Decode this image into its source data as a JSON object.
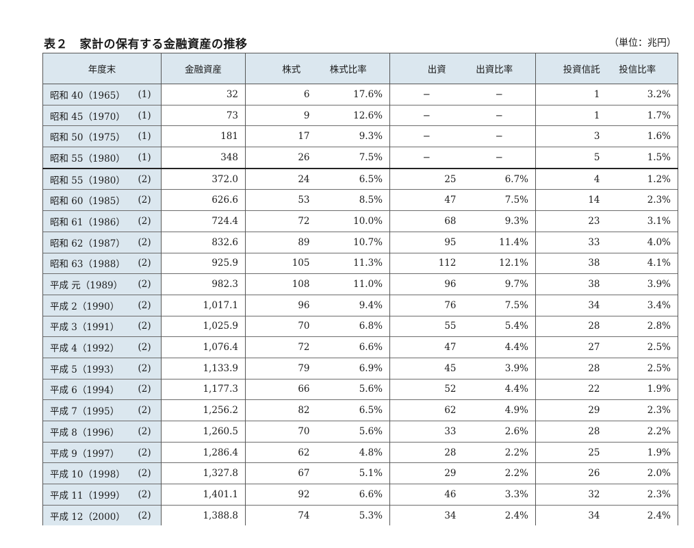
{
  "title": "表２　家計の保有する金融資産の推移",
  "unit": "（単位：兆円）",
  "headers": {
    "year_end": "年度末",
    "financial_assets": "金融資産",
    "stocks": "株式",
    "stock_ratio": "株式比率",
    "investment": "出資",
    "investment_ratio": "出資比率",
    "trusts": "投資信託",
    "trust_ratio": "投信比率"
  },
  "rows": [
    {
      "era": "昭和 40（1965）",
      "note": "(1)",
      "assets": "32",
      "stocks": "6",
      "stock_ratio": "17.6%",
      "invest": "−",
      "invest_ratio": "−",
      "trust": "1",
      "trust_ratio": "3.2%"
    },
    {
      "era": "昭和 45（1970）",
      "note": "(1)",
      "assets": "73",
      "stocks": "9",
      "stock_ratio": "12.6%",
      "invest": "−",
      "invest_ratio": "−",
      "trust": "1",
      "trust_ratio": "1.7%"
    },
    {
      "era": "昭和 50（1975）",
      "note": "(1)",
      "assets": "181",
      "stocks": "17",
      "stock_ratio": "9.3%",
      "invest": "−",
      "invest_ratio": "−",
      "trust": "3",
      "trust_ratio": "1.6%"
    },
    {
      "era": "昭和 55（1980）",
      "note": "(1)",
      "assets": "348",
      "stocks": "26",
      "stock_ratio": "7.5%",
      "invest": "−",
      "invest_ratio": "−",
      "trust": "5",
      "trust_ratio": "1.5%"
    },
    {
      "era": "昭和 55（1980）",
      "note": "(2)",
      "assets": "372.0",
      "stocks": "24",
      "stock_ratio": "6.5%",
      "invest": "25",
      "invest_ratio": "6.7%",
      "trust": "4",
      "trust_ratio": "1.2%"
    },
    {
      "era": "昭和 60（1985）",
      "note": "(2)",
      "assets": "626.6",
      "stocks": "53",
      "stock_ratio": "8.5%",
      "invest": "47",
      "invest_ratio": "7.5%",
      "trust": "14",
      "trust_ratio": "2.3%"
    },
    {
      "era": "昭和 61（1986）",
      "note": "(2)",
      "assets": "724.4",
      "stocks": "72",
      "stock_ratio": "10.0%",
      "invest": "68",
      "invest_ratio": "9.3%",
      "trust": "23",
      "trust_ratio": "3.1%"
    },
    {
      "era": "昭和 62（1987）",
      "note": "(2)",
      "assets": "832.6",
      "stocks": "89",
      "stock_ratio": "10.7%",
      "invest": "95",
      "invest_ratio": "11.4%",
      "trust": "33",
      "trust_ratio": "4.0%"
    },
    {
      "era": "昭和 63（1988）",
      "note": "(2)",
      "assets": "925.9",
      "stocks": "105",
      "stock_ratio": "11.3%",
      "invest": "112",
      "invest_ratio": "12.1%",
      "trust": "38",
      "trust_ratio": "4.1%"
    },
    {
      "era": "平成 元（1989）",
      "note": "(2)",
      "assets": "982.3",
      "stocks": "108",
      "stock_ratio": "11.0%",
      "invest": "96",
      "invest_ratio": "9.7%",
      "trust": "38",
      "trust_ratio": "3.9%"
    },
    {
      "era": "平成 2（1990）",
      "note": "(2)",
      "assets": "1,017.1",
      "stocks": "96",
      "stock_ratio": "9.4%",
      "invest": "76",
      "invest_ratio": "7.5%",
      "trust": "34",
      "trust_ratio": "3.4%"
    },
    {
      "era": "平成 3（1991）",
      "note": "(2)",
      "assets": "1,025.9",
      "stocks": "70",
      "stock_ratio": "6.8%",
      "invest": "55",
      "invest_ratio": "5.4%",
      "trust": "28",
      "trust_ratio": "2.8%"
    },
    {
      "era": "平成 4（1992）",
      "note": "(2)",
      "assets": "1,076.4",
      "stocks": "72",
      "stock_ratio": "6.6%",
      "invest": "47",
      "invest_ratio": "4.4%",
      "trust": "27",
      "trust_ratio": "2.5%"
    },
    {
      "era": "平成 5（1993）",
      "note": "(2)",
      "assets": "1,133.9",
      "stocks": "79",
      "stock_ratio": "6.9%",
      "invest": "45",
      "invest_ratio": "3.9%",
      "trust": "28",
      "trust_ratio": "2.5%"
    },
    {
      "era": "平成 6（1994）",
      "note": "(2)",
      "assets": "1,177.3",
      "stocks": "66",
      "stock_ratio": "5.6%",
      "invest": "52",
      "invest_ratio": "4.4%",
      "trust": "22",
      "trust_ratio": "1.9%"
    },
    {
      "era": "平成 7（1995）",
      "note": "(2)",
      "assets": "1,256.2",
      "stocks": "82",
      "stock_ratio": "6.5%",
      "invest": "62",
      "invest_ratio": "4.9%",
      "trust": "29",
      "trust_ratio": "2.3%"
    },
    {
      "era": "平成 8（1996）",
      "note": "(2)",
      "assets": "1,260.5",
      "stocks": "70",
      "stock_ratio": "5.6%",
      "invest": "33",
      "invest_ratio": "2.6%",
      "trust": "28",
      "trust_ratio": "2.2%"
    },
    {
      "era": "平成 9（1997）",
      "note": "(2)",
      "assets": "1,286.4",
      "stocks": "62",
      "stock_ratio": "4.8%",
      "invest": "28",
      "invest_ratio": "2.2%",
      "trust": "25",
      "trust_ratio": "1.9%"
    },
    {
      "era": "平成 10（1998）",
      "note": "(2)",
      "assets": "1,327.8",
      "stocks": "67",
      "stock_ratio": "5.1%",
      "invest": "29",
      "invest_ratio": "2.2%",
      "trust": "26",
      "trust_ratio": "2.0%"
    },
    {
      "era": "平成 11（1999）",
      "note": "(2)",
      "assets": "1,401.1",
      "stocks": "92",
      "stock_ratio": "6.6%",
      "invest": "46",
      "invest_ratio": "3.3%",
      "trust": "32",
      "trust_ratio": "2.3%"
    },
    {
      "era": "平成 12（2000）",
      "note": "(2)",
      "assets": "1,388.8",
      "stocks": "74",
      "stock_ratio": "5.3%",
      "invest": "34",
      "invest_ratio": "2.4%",
      "trust": "34",
      "trust_ratio": "2.4%"
    }
  ]
}
